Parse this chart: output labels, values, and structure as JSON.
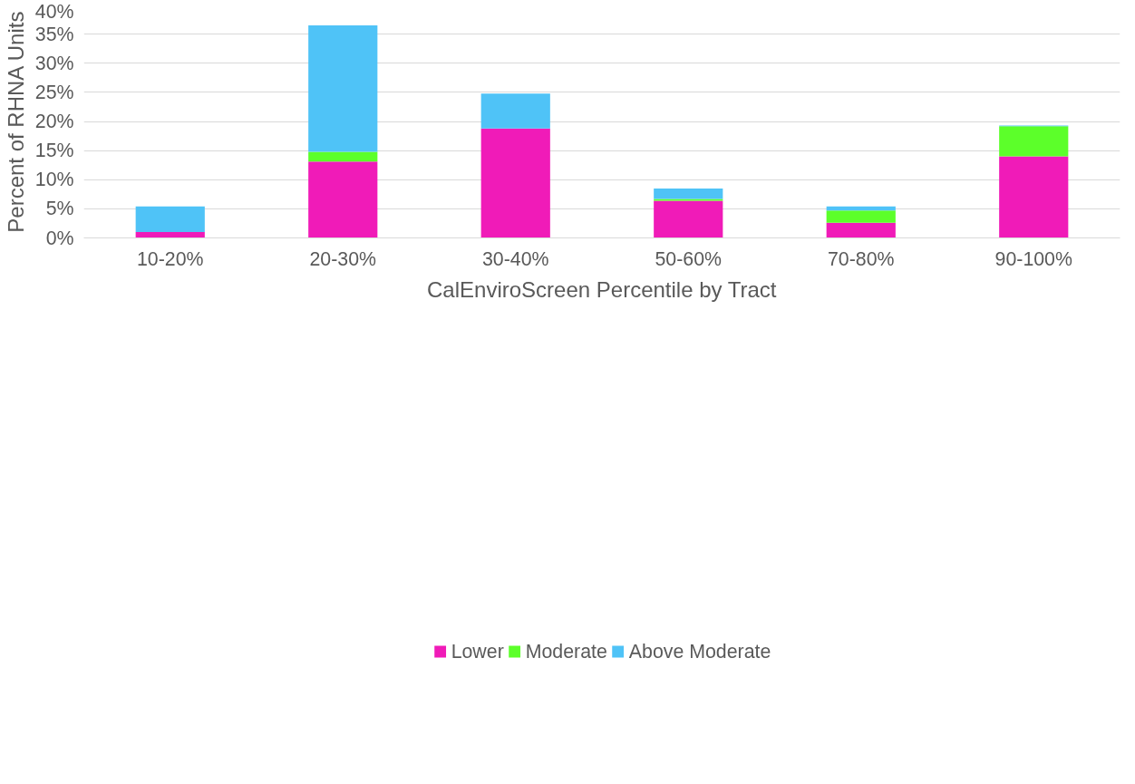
{
  "chart_data": {
    "type": "bar",
    "stacked": true,
    "xlabel": "CalEnviroScreen Percentile by Tract",
    "ylabel": "Percent of RHNA Units",
    "categories": [
      "10-20%",
      "20-30%",
      "30-40%",
      "50-60%",
      "70-80%",
      "90-100%"
    ],
    "series": [
      {
        "name": "Lower",
        "color": "#f01bb8",
        "values": [
          1.0,
          13.1,
          18.8,
          6.4,
          2.6,
          14.0
        ]
      },
      {
        "name": "Moderate",
        "color": "#5cff2a",
        "values": [
          0,
          1.7,
          0,
          0.3,
          2.1,
          5.2
        ]
      },
      {
        "name": "Above Moderate",
        "color": "#4fc3f7",
        "values": [
          4.4,
          21.7,
          6.0,
          1.8,
          0.7,
          0.1
        ]
      }
    ],
    "ylim": [
      0,
      40
    ],
    "yticks": [
      {
        "value": 0,
        "label": "0%"
      },
      {
        "value": 5,
        "label": "5%"
      },
      {
        "value": 10,
        "label": "10%"
      },
      {
        "value": 15,
        "label": "15%"
      },
      {
        "value": 20,
        "label": "20%"
      },
      {
        "value": 25,
        "label": "25%"
      },
      {
        "value": 30,
        "label": "30%"
      },
      {
        "value": 35,
        "label": "35%"
      },
      {
        "value": 40,
        "label": "40%"
      }
    ],
    "grid": "y",
    "legend": "bottom"
  }
}
